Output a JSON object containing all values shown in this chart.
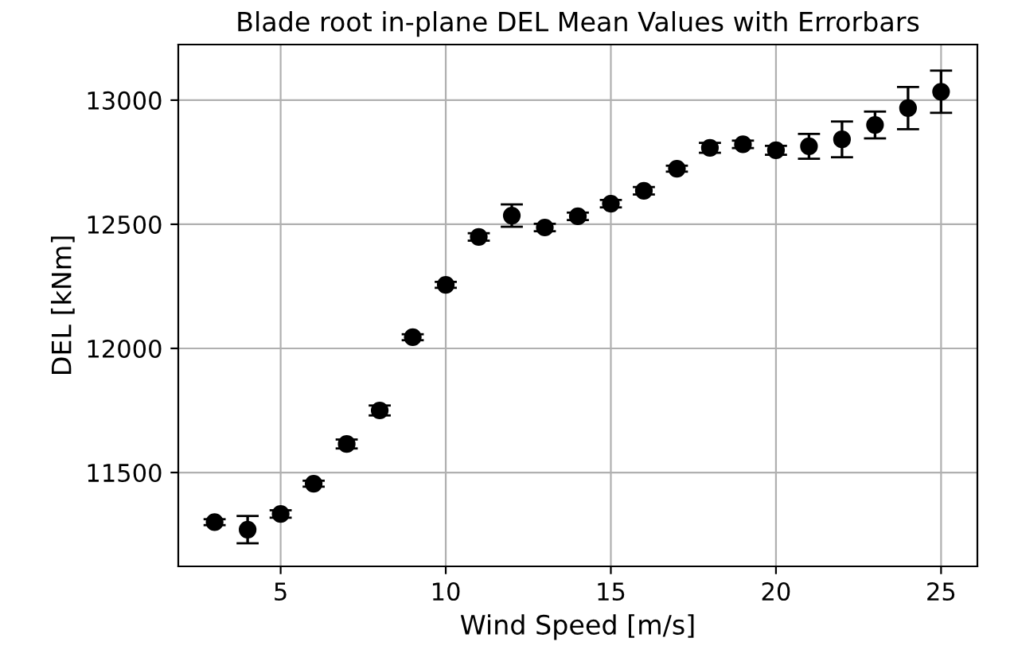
{
  "chart_data": {
    "type": "scatter",
    "title": "Blade root in-plane DEL Mean Values with Errorbars",
    "xlabel": "Wind Speed [m/s]",
    "ylabel": "DEL [kNm]",
    "x": [
      3,
      4,
      5,
      6,
      7,
      8,
      9,
      10,
      11,
      12,
      13,
      14,
      15,
      16,
      17,
      18,
      19,
      20,
      21,
      22,
      23,
      24,
      25
    ],
    "values": [
      11300,
      11270,
      11333,
      11455,
      11615,
      11750,
      12045,
      12256,
      12449,
      12535,
      12487,
      12532,
      12583,
      12635,
      12724,
      12808,
      12822,
      12798,
      12814,
      12842,
      12900,
      12968,
      13034
    ],
    "errors": [
      12,
      55,
      15,
      12,
      18,
      20,
      12,
      12,
      15,
      45,
      15,
      15,
      15,
      15,
      12,
      20,
      15,
      18,
      50,
      72,
      54,
      85,
      85
    ],
    "color": "#000000",
    "marker": "circle",
    "xlim": [
      1.9,
      26.1
    ],
    "ylim": [
      11122,
      13224
    ],
    "xticks": [
      5,
      10,
      15,
      20,
      25
    ],
    "yticks": [
      11500,
      12000,
      12500,
      13000
    ],
    "grid": true
  }
}
